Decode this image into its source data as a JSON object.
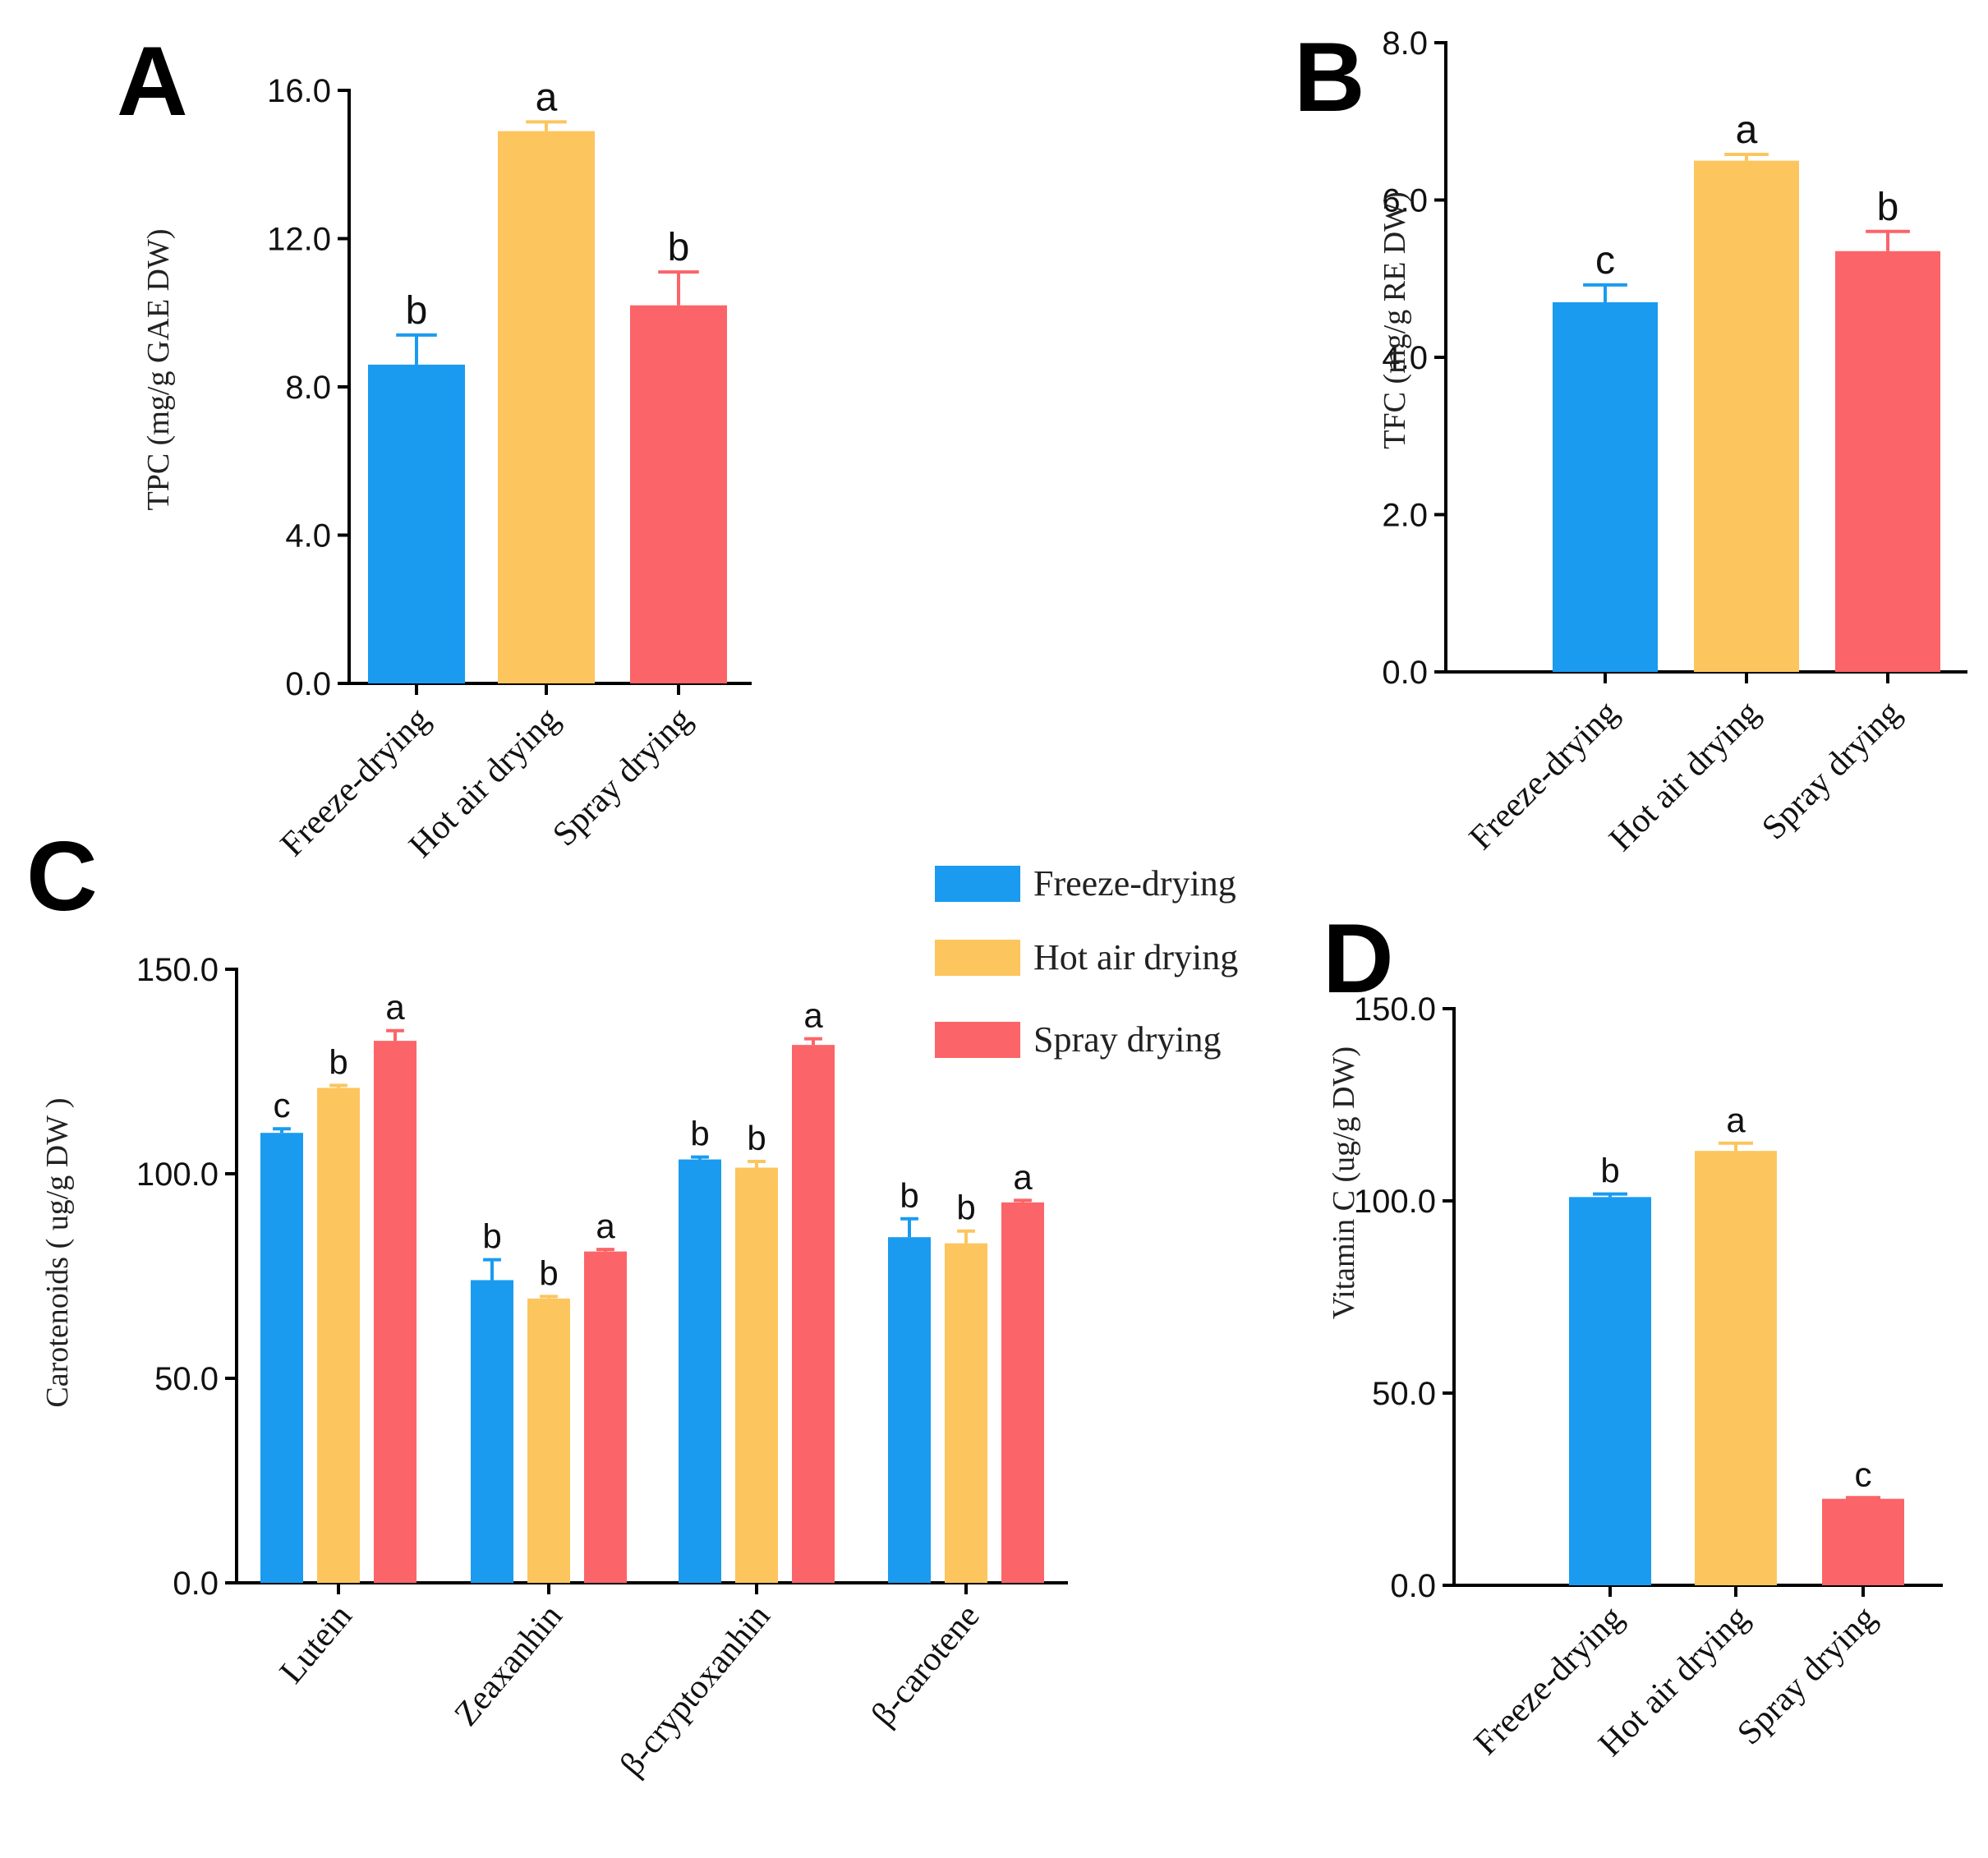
{
  "colors": {
    "freeze": "#1a9bf0",
    "hot": "#fdc55e",
    "spray": "#fb6468"
  },
  "legend": {
    "items": [
      {
        "label": "Freeze-drying",
        "color": "#1a9bf0"
      },
      {
        "label": "Hot air drying",
        "color": "#fdc55e"
      },
      {
        "label": "Spray drying",
        "color": "#fb6468"
      }
    ]
  },
  "chart_data": [
    {
      "id": "A",
      "panel_label": "A",
      "type": "bar",
      "title": "",
      "ylabel": "TPC (mg/g GAE DW)",
      "ylim": [
        0,
        16
      ],
      "yticks": [
        0,
        4,
        8,
        12,
        16
      ],
      "ytick_labels": [
        "0.0",
        "4.0",
        "8.0",
        "12.0",
        "16.0"
      ],
      "categories": [
        "Freeze-drying",
        "Hot air drying",
        "Spray drying"
      ],
      "series": [
        {
          "name": "Value",
          "values": [
            8.6,
            14.9,
            10.2
          ],
          "errors": [
            0.8,
            0.25,
            0.9
          ],
          "colors": [
            "#1a9bf0",
            "#fdc55e",
            "#fb6468"
          ],
          "sig": [
            "b",
            "a",
            "b"
          ]
        }
      ]
    },
    {
      "id": "B",
      "panel_label": "B",
      "type": "bar",
      "title": "",
      "ylabel": "TFC (mg/g RE DW)",
      "ylim": [
        0,
        8
      ],
      "yticks": [
        0,
        2,
        4,
        6,
        8
      ],
      "ytick_labels": [
        "0.0",
        "2.0",
        "4.0",
        "6.0",
        "8.0"
      ],
      "categories": [
        "Freeze-drying",
        "Hot air drying",
        "Spray drying"
      ],
      "series": [
        {
          "name": "Value",
          "values": [
            4.7,
            6.5,
            5.35
          ],
          "errors": [
            0.22,
            0.08,
            0.25
          ],
          "colors": [
            "#1a9bf0",
            "#fdc55e",
            "#fb6468"
          ],
          "sig": [
            "c",
            "a",
            "b"
          ]
        }
      ]
    },
    {
      "id": "C",
      "panel_label": "C",
      "type": "bar",
      "title": "",
      "ylabel": "Carotenoids ( ug/g DW )",
      "ylim": [
        0,
        150
      ],
      "yticks": [
        0,
        50,
        100,
        150
      ],
      "ytick_labels": [
        "0.0",
        "50.0",
        "100.0",
        "150.0"
      ],
      "categories": [
        "Lutein",
        "Zeaxanhin",
        "β-cryptoxanhin",
        "β-carotene"
      ],
      "series": [
        {
          "name": "Freeze-drying",
          "color": "#1a9bf0",
          "values": [
            110,
            74,
            103.5,
            84.5
          ],
          "errors": [
            1.0,
            5.0,
            0.6,
            4.5
          ],
          "sig": [
            "c",
            "b",
            "b",
            "b"
          ]
        },
        {
          "name": "Hot air drying",
          "color": "#fdc55e",
          "values": [
            121,
            69.5,
            101.5,
            83
          ],
          "errors": [
            0.6,
            0.5,
            1.5,
            3.0
          ],
          "sig": [
            "b",
            "b",
            "b",
            "b"
          ]
        },
        {
          "name": "Spray drying",
          "color": "#fb6468",
          "values": [
            132.5,
            81,
            131.5,
            93
          ],
          "errors": [
            2.5,
            0.5,
            1.5,
            0.5
          ],
          "sig": [
            "a",
            "a",
            "a",
            "a"
          ]
        }
      ]
    },
    {
      "id": "D",
      "panel_label": "D",
      "type": "bar",
      "title": "",
      "ylabel": "Vitamin C (ug/g DW)",
      "ylim": [
        0,
        150
      ],
      "yticks": [
        0,
        50,
        100,
        150
      ],
      "ytick_labels": [
        "0.0",
        "50.0",
        "100.0",
        "150.0"
      ],
      "categories": [
        "Freeze-drying",
        "Hot air drying",
        "Spray drying"
      ],
      "series": [
        {
          "name": "Value",
          "values": [
            101,
            113,
            22.5
          ],
          "errors": [
            0.8,
            2.0,
            0.3
          ],
          "colors": [
            "#1a9bf0",
            "#fdc55e",
            "#fb6468"
          ],
          "sig": [
            "b",
            "a",
            "c"
          ]
        }
      ]
    }
  ]
}
